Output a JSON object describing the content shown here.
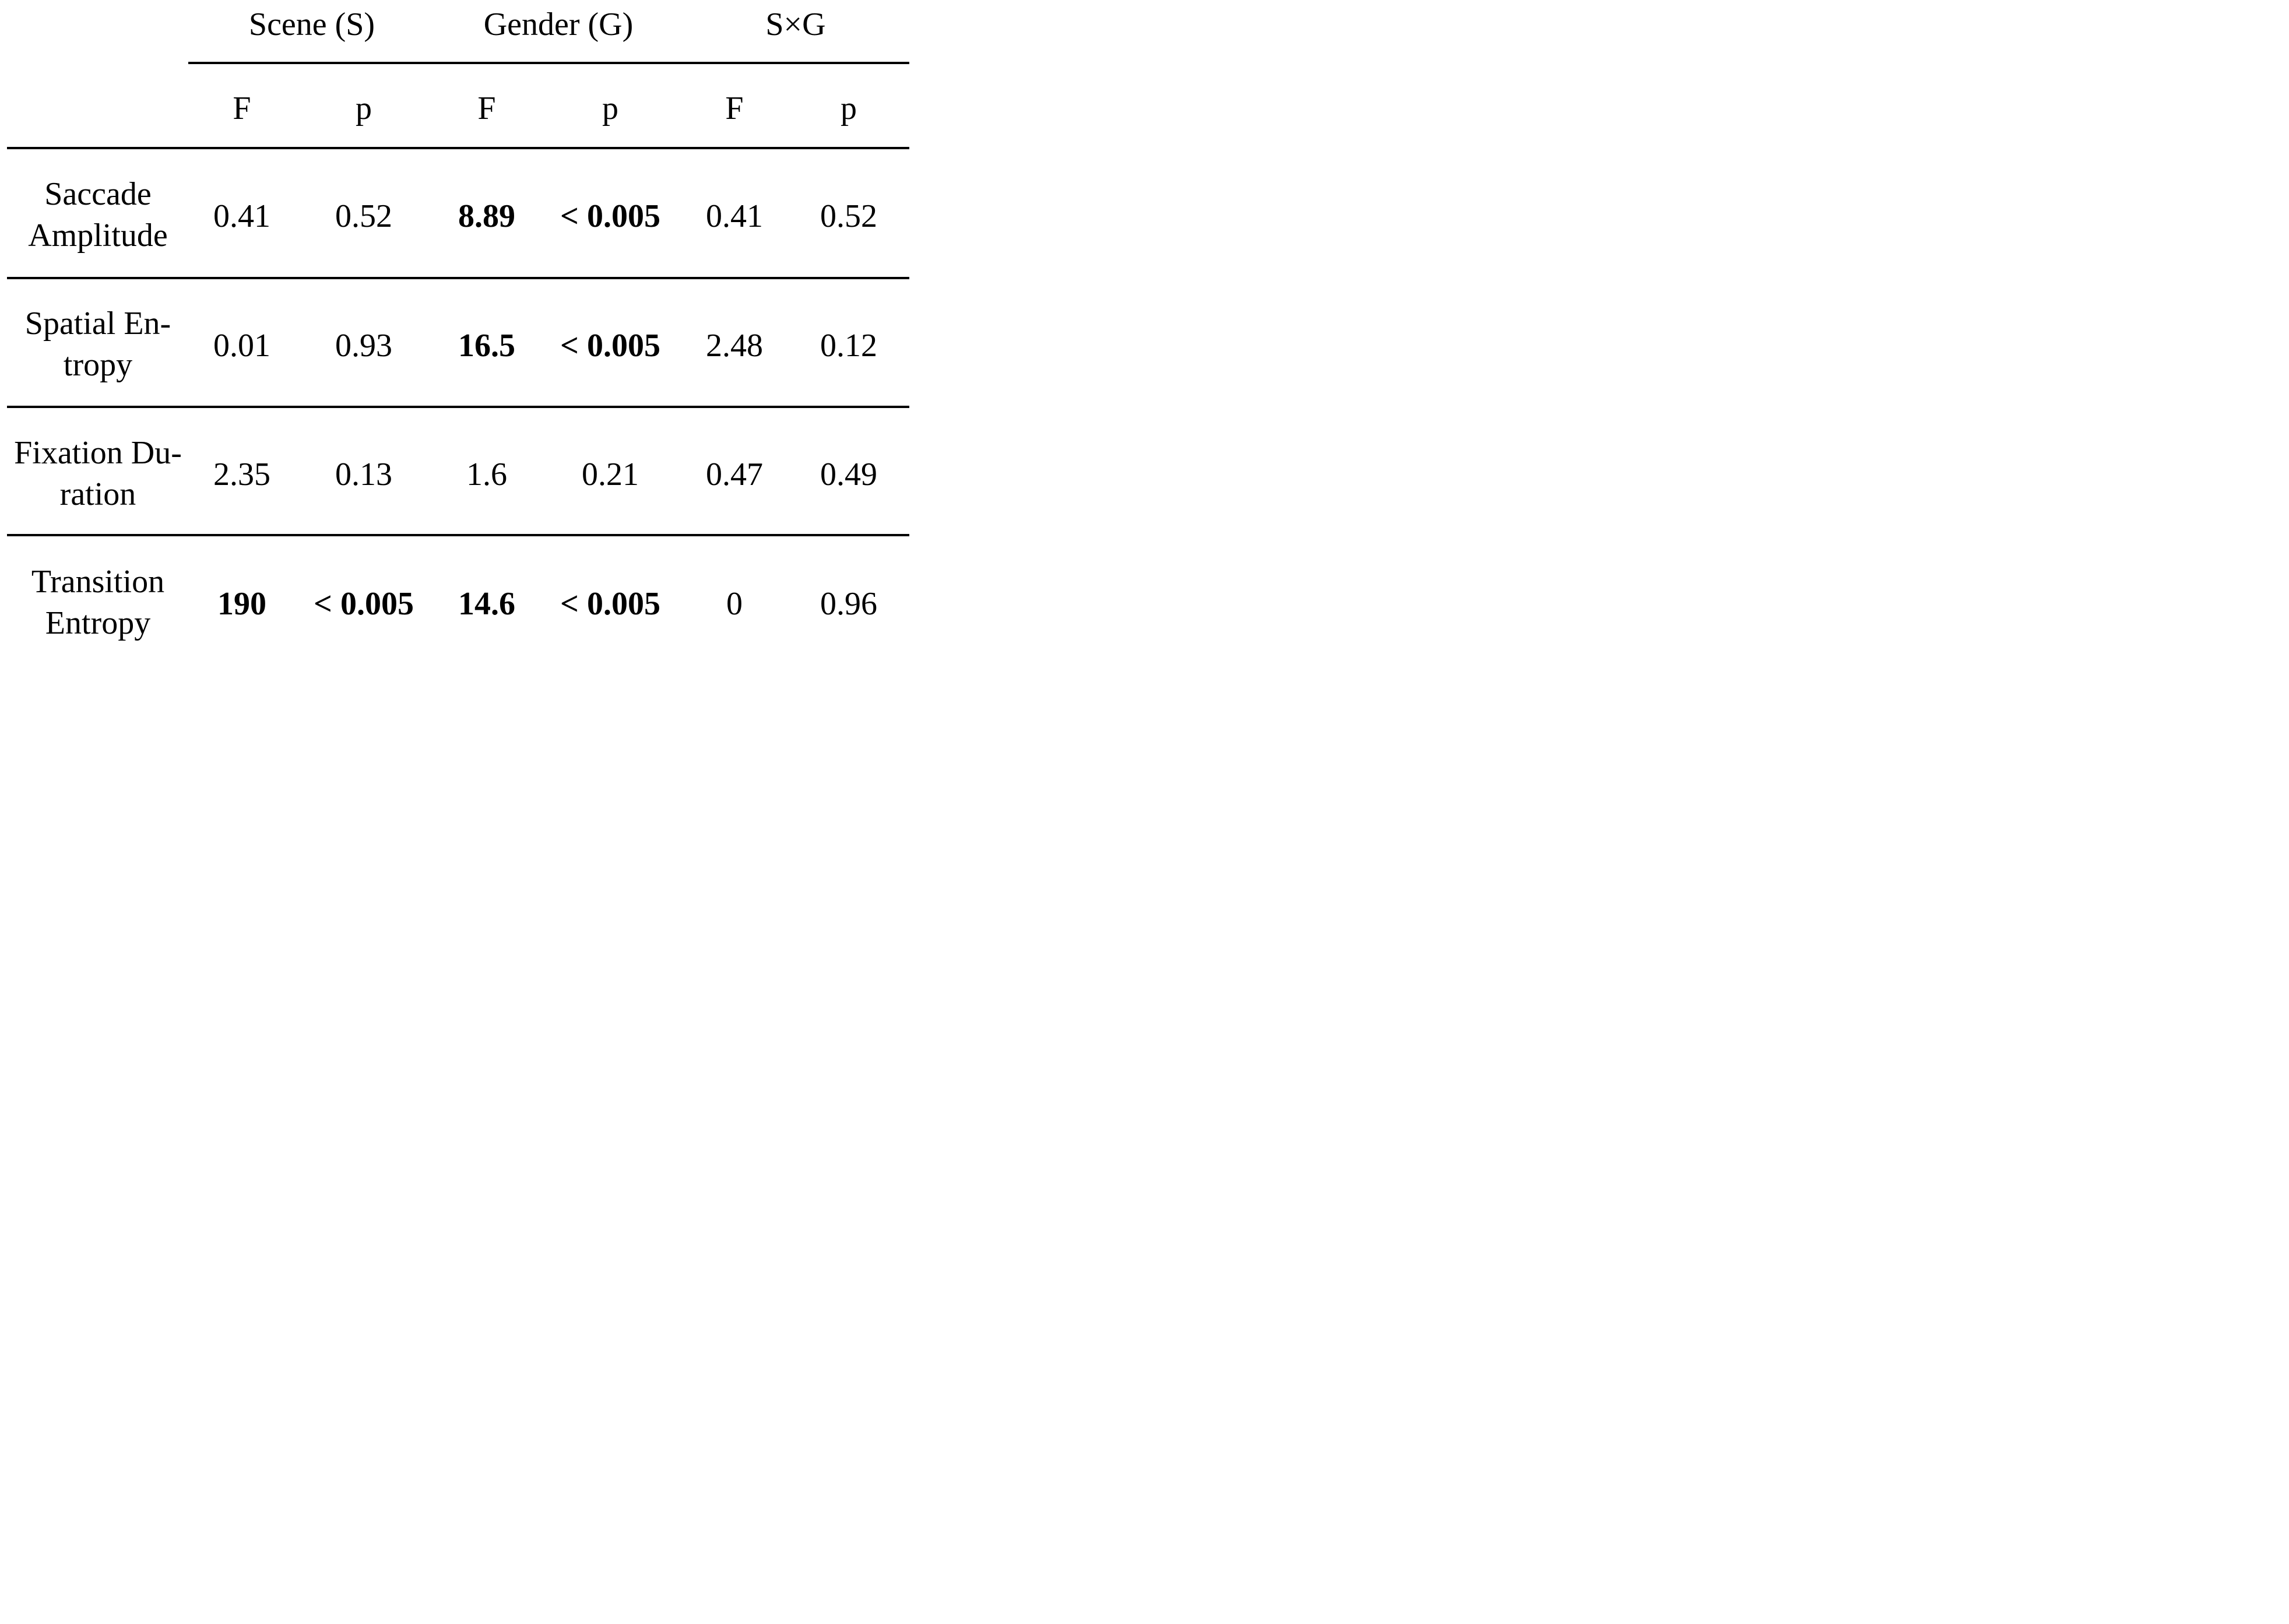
{
  "table": {
    "groups": [
      {
        "label": "Scene (S)"
      },
      {
        "label": "Gender (G)"
      },
      {
        "label": "S×G"
      }
    ],
    "subheaders": [
      "F",
      "p",
      "F",
      "p",
      "F",
      "p"
    ],
    "rows": [
      {
        "label_lines": [
          "Saccade",
          "Amplitude"
        ],
        "cells": [
          {
            "text": "0.41",
            "bold": false
          },
          {
            "text": "0.52",
            "bold": false
          },
          {
            "text": "8.89",
            "bold": true
          },
          {
            "text": "< 0.005",
            "bold": true
          },
          {
            "text": "0.41",
            "bold": false
          },
          {
            "text": "0.52",
            "bold": false
          }
        ]
      },
      {
        "label_lines": [
          "Spatial En-",
          "tropy"
        ],
        "cells": [
          {
            "text": "0.01",
            "bold": false
          },
          {
            "text": "0.93",
            "bold": false
          },
          {
            "text": "16.5",
            "bold": true
          },
          {
            "text": "< 0.005",
            "bold": true
          },
          {
            "text": "2.48",
            "bold": false
          },
          {
            "text": "0.12",
            "bold": false
          }
        ]
      },
      {
        "label_lines": [
          "Fixation Du-",
          "ration"
        ],
        "cells": [
          {
            "text": "2.35",
            "bold": false
          },
          {
            "text": "0.13",
            "bold": false
          },
          {
            "text": "1.6",
            "bold": false
          },
          {
            "text": "0.21",
            "bold": false
          },
          {
            "text": "0.47",
            "bold": false
          },
          {
            "text": "0.49",
            "bold": false
          }
        ]
      },
      {
        "label_lines": [
          "Transition",
          "Entropy"
        ],
        "cells": [
          {
            "text": "190",
            "bold": true
          },
          {
            "text": "< 0.005",
            "bold": true
          },
          {
            "text": "14.6",
            "bold": true
          },
          {
            "text": "< 0.005",
            "bold": true
          },
          {
            "text": "0",
            "bold": false
          },
          {
            "text": "0.96",
            "bold": false
          }
        ]
      }
    ]
  }
}
